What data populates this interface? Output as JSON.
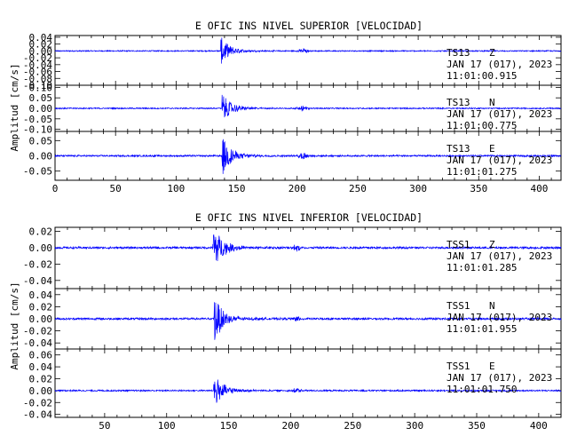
{
  "chart_data": [
    {
      "type": "line",
      "title": "E OFIC INS NIVEL SUPERIOR [VELOCIDAD]",
      "ylabel": "Amplitud [cm/s]",
      "xticks": [
        0,
        50,
        100,
        150,
        200,
        250,
        300,
        350,
        400
      ],
      "xlim": [
        0,
        418
      ],
      "grid": false,
      "line_color": "#0000ff",
      "panels": [
        {
          "station": "TS13",
          "component": "Z",
          "date": "JAN 17 (017), 2023",
          "time": "11:01:00.915",
          "yticks": [
            "0.04",
            "0.02",
            "0.00",
            "-0.02",
            "-0.04",
            "-0.06",
            "-0.08",
            "-0.10"
          ],
          "ylim": [
            -0.1,
            0.045
          ],
          "onset_s": 137,
          "peak_amplitude": 0.04,
          "secondary_s": 205,
          "secondary_amplitude": 0.008
        },
        {
          "station": "TS13",
          "component": "N",
          "date": "JAN 17 (017), 2023",
          "time": "11:01:00.775",
          "yticks": [
            "0.10",
            "0.05",
            "0.00",
            "-0.05",
            "-0.10"
          ],
          "ylim": [
            -0.11,
            0.11
          ],
          "onset_s": 138,
          "peak_amplitude": 0.07,
          "secondary_s": 205,
          "secondary_amplitude": 0.012
        },
        {
          "station": "TS13",
          "component": "E",
          "date": "JAN 17 (017), 2023",
          "time": "11:01:01.275",
          "yticks": [
            "0.05",
            "0.00",
            "-0.05"
          ],
          "ylim": [
            -0.08,
            0.08
          ],
          "onset_s": 138,
          "peak_amplitude": 0.065,
          "secondary_s": 205,
          "secondary_amplitude": 0.012
        }
      ]
    },
    {
      "type": "line",
      "title": "E OFIC INS NIVEL INFERIOR [VELOCIDAD]",
      "ylabel": "Amplitud [cm/s]",
      "xticks": [
        50,
        100,
        150,
        200,
        250,
        300,
        350,
        400
      ],
      "xlim": [
        10,
        418
      ],
      "grid": false,
      "line_color": "#0000ff",
      "panels": [
        {
          "station": "TSS1",
          "component": "Z",
          "date": "JAN 17 (017), 2023",
          "time": "11:01:01.285",
          "yticks": [
            "0.02",
            "0.00",
            "-0.02",
            "-0.04"
          ],
          "ylim": [
            -0.05,
            0.025
          ],
          "onset_s": 137,
          "peak_amplitude": 0.03,
          "secondary_s": 205,
          "secondary_amplitude": 0.004
        },
        {
          "station": "TSS1",
          "component": "N",
          "date": "JAN 17 (017), 2023",
          "time": "11:01:01.955",
          "yticks": [
            "0.04",
            "0.02",
            "0.00",
            "-0.02",
            "-0.04"
          ],
          "ylim": [
            -0.05,
            0.05
          ],
          "onset_s": 138,
          "peak_amplitude": 0.04,
          "secondary_s": 205,
          "secondary_amplitude": 0.005
        },
        {
          "station": "TSS1",
          "component": "E",
          "date": "JAN 17 (017), 2023",
          "time": "11:01:01.750",
          "yticks": [
            "0.06",
            "0.04",
            "0.02",
            "0.00",
            "-0.02",
            "-0.04"
          ],
          "ylim": [
            -0.045,
            0.07
          ],
          "onset_s": 138,
          "peak_amplitude": 0.03,
          "secondary_s": 205,
          "secondary_amplitude": 0.004
        }
      ]
    }
  ]
}
